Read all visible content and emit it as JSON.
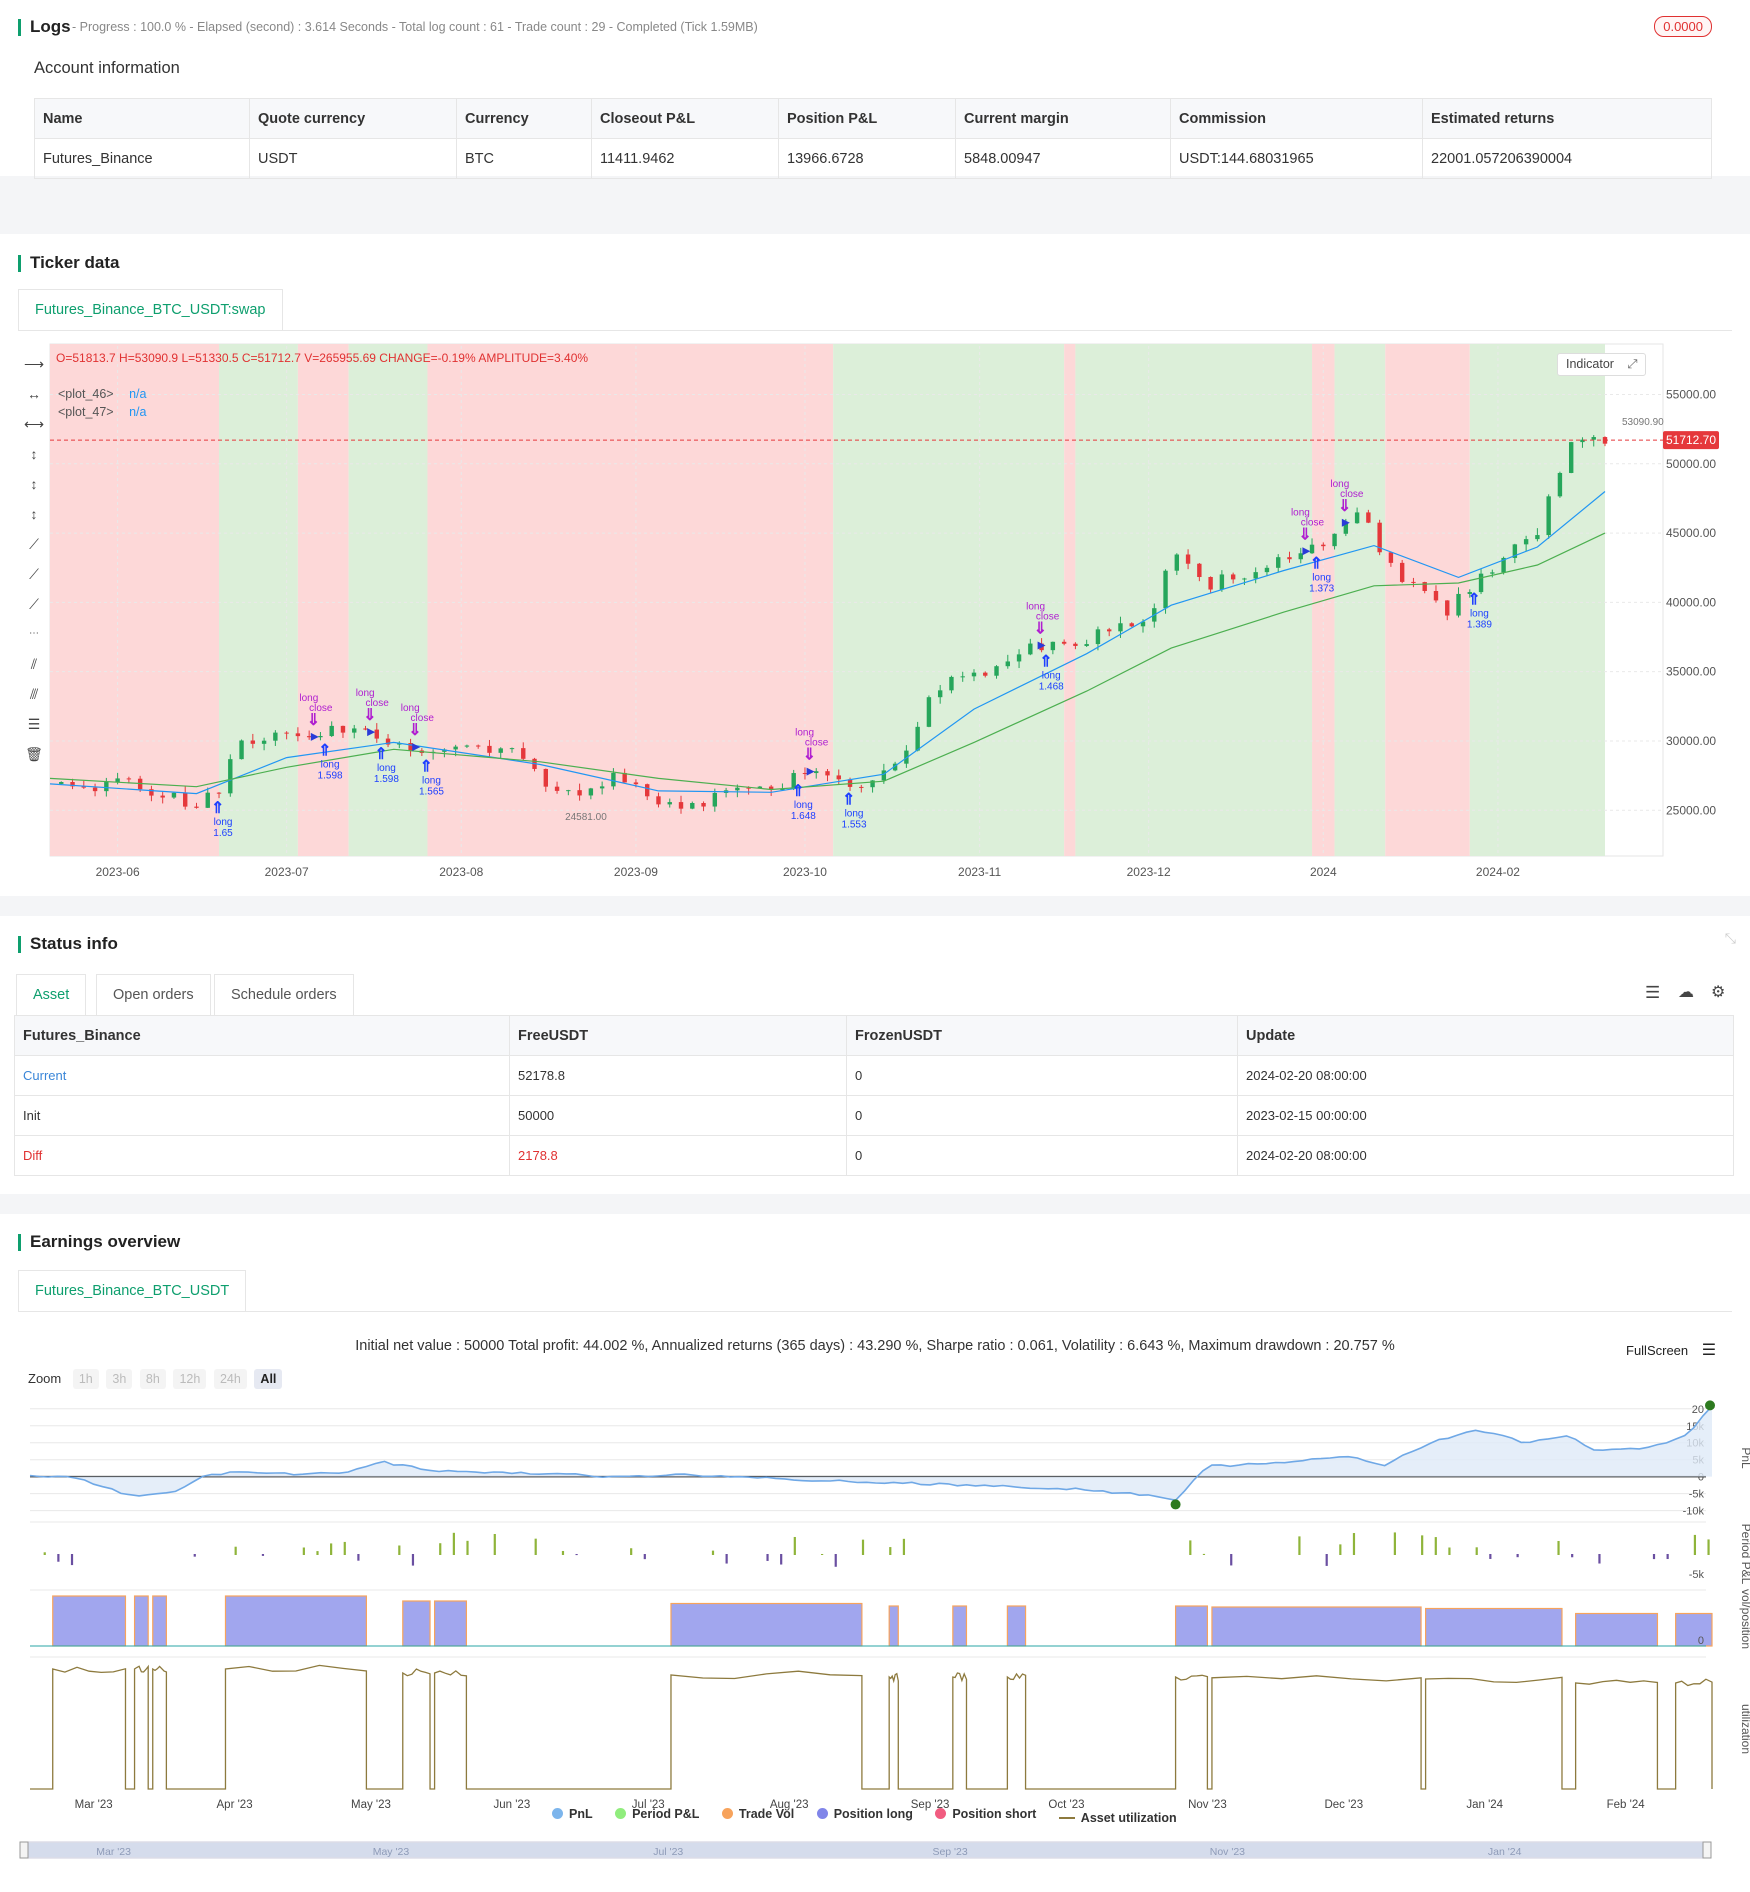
{
  "logs": {
    "title": "Logs",
    "stats": "- Progress : 100.0 % - Elapsed (second) : 3.614 Seconds - Total log count : 61 - Trade count : 29 - Completed (Tick 1.59MB)",
    "badge": "0.0000"
  },
  "account": {
    "title": "Account information",
    "headers": [
      "Name",
      "Quote currency",
      "Currency",
      "Closeout P&L",
      "Position P&L",
      "Current margin",
      "Commission",
      "Estimated returns"
    ],
    "row": [
      "Futures_Binance",
      "USDT",
      "BTC",
      "11411.9462",
      "13966.6728",
      "5848.00947",
      "USDT:144.68031965",
      "22001.057206390004"
    ]
  },
  "ticker": {
    "title": "Ticker data",
    "tab": "Futures_Binance_BTC_USDT:swap",
    "ohlc": "O=51813.7 H=53090.9 L=51330.5 C=51712.7 V=265955.69 CHANGE=-0.19% AMPLITUDE=3.40%",
    "plot46_label": "<plot_46>",
    "plot46_value": "n/a",
    "plot47_label": "<plot_47>",
    "plot47_value": "n/a",
    "indicator_button": "Indicator",
    "last_price": "51712.70",
    "high_marker": "53090.90",
    "low_marker": "24581.00"
  },
  "chart_data": [
    {
      "type": "candlestick",
      "title": "",
      "x_ticks": [
        "2023-06",
        "2023-07",
        "2023-08",
        "2023-09",
        "2023-10",
        "2023-11",
        "2023-12",
        "2024",
        "2024-02"
      ],
      "y_ticks": [
        "55000.00",
        "50000.00",
        "45000.00",
        "40000.00",
        "35000.00",
        "30000.00",
        "25000.00"
      ],
      "ylim": [
        21700,
        58500
      ],
      "close_path": [
        {
          "d": "2023-05-20",
          "v": 26900
        },
        {
          "d": "2023-05-26",
          "v": 26500
        },
        {
          "d": "2023-06-01",
          "v": 27100
        },
        {
          "d": "2023-06-08",
          "v": 26400
        },
        {
          "d": "2023-06-15",
          "v": 25300
        },
        {
          "d": "2023-06-19",
          "v": 26400
        },
        {
          "d": "2023-06-22",
          "v": 30000
        },
        {
          "d": "2023-06-30",
          "v": 30500
        },
        {
          "d": "2023-07-06",
          "v": 30300
        },
        {
          "d": "2023-07-13",
          "v": 31200
        },
        {
          "d": "2023-07-20",
          "v": 29900
        },
        {
          "d": "2023-07-27",
          "v": 29300
        },
        {
          "d": "2023-08-01",
          "v": 29500
        },
        {
          "d": "2023-08-10",
          "v": 29400
        },
        {
          "d": "2023-08-17",
          "v": 26600
        },
        {
          "d": "2023-08-25",
          "v": 26100
        },
        {
          "d": "2023-08-29",
          "v": 27700
        },
        {
          "d": "2023-09-05",
          "v": 25800
        },
        {
          "d": "2023-09-11",
          "v": 25100
        },
        {
          "d": "2023-09-18",
          "v": 26800
        },
        {
          "d": "2023-09-25",
          "v": 26200
        },
        {
          "d": "2023-10-01",
          "v": 27900
        },
        {
          "d": "2023-10-11",
          "v": 26800
        },
        {
          "d": "2023-10-20",
          "v": 29600
        },
        {
          "d": "2023-10-24",
          "v": 33900
        },
        {
          "d": "2023-10-31",
          "v": 34600
        },
        {
          "d": "2023-11-09",
          "v": 36700
        },
        {
          "d": "2023-11-20",
          "v": 37400
        },
        {
          "d": "2023-12-01",
          "v": 38700
        },
        {
          "d": "2023-12-05",
          "v": 44000
        },
        {
          "d": "2023-12-11",
          "v": 41200
        },
        {
          "d": "2023-12-25",
          "v": 43000
        },
        {
          "d": "2024-01-01",
          "v": 44200
        },
        {
          "d": "2024-01-08",
          "v": 46900
        },
        {
          "d": "2024-01-12",
          "v": 42800
        },
        {
          "d": "2024-01-23",
          "v": 39500
        },
        {
          "d": "2024-01-31",
          "v": 42600
        },
        {
          "d": "2024-02-08",
          "v": 45300
        },
        {
          "d": "2024-02-14",
          "v": 51800
        },
        {
          "d": "2024-02-20",
          "v": 51712.7
        }
      ],
      "series": [
        {
          "name": "<plot_46>",
          "color": "#2196f3",
          "values": [
            {
              "d": "2023-05-20",
              "v": 26900
            },
            {
              "d": "2023-06-15",
              "v": 26200
            },
            {
              "d": "2023-07-01",
              "v": 28800
            },
            {
              "d": "2023-07-20",
              "v": 29900
            },
            {
              "d": "2023-08-15",
              "v": 28300
            },
            {
              "d": "2023-09-05",
              "v": 26400
            },
            {
              "d": "2023-09-25",
              "v": 26300
            },
            {
              "d": "2023-10-15",
              "v": 27600
            },
            {
              "d": "2023-10-31",
              "v": 32300
            },
            {
              "d": "2023-11-20",
              "v": 36300
            },
            {
              "d": "2023-12-05",
              "v": 39800
            },
            {
              "d": "2023-12-25",
              "v": 42300
            },
            {
              "d": "2024-01-10",
              "v": 44100
            },
            {
              "d": "2024-01-25",
              "v": 41800
            },
            {
              "d": "2024-02-08",
              "v": 44000
            },
            {
              "d": "2024-02-20",
              "v": 48000
            }
          ]
        },
        {
          "name": "<plot_47>",
          "color": "#4caf50",
          "values": [
            {
              "d": "2023-05-20",
              "v": 27300
            },
            {
              "d": "2023-06-15",
              "v": 26700
            },
            {
              "d": "2023-07-01",
              "v": 28100
            },
            {
              "d": "2023-07-20",
              "v": 29400
            },
            {
              "d": "2023-08-15",
              "v": 28500
            },
            {
              "d": "2023-09-05",
              "v": 27300
            },
            {
              "d": "2023-09-25",
              "v": 26500
            },
            {
              "d": "2023-10-15",
              "v": 27100
            },
            {
              "d": "2023-10-31",
              "v": 29900
            },
            {
              "d": "2023-11-20",
              "v": 33600
            },
            {
              "d": "2023-12-05",
              "v": 36700
            },
            {
              "d": "2023-12-25",
              "v": 39300
            },
            {
              "d": "2024-01-10",
              "v": 41200
            },
            {
              "d": "2024-01-25",
              "v": 41400
            },
            {
              "d": "2024-02-08",
              "v": 42700
            },
            {
              "d": "2024-02-20",
              "v": 45000
            }
          ]
        }
      ],
      "regimes": [
        {
          "from": "2023-05-20",
          "to": "2023-06-19",
          "state": "bear"
        },
        {
          "from": "2023-06-19",
          "to": "2023-07-03",
          "state": "bull"
        },
        {
          "from": "2023-07-03",
          "to": "2023-07-12",
          "state": "bear"
        },
        {
          "from": "2023-07-12",
          "to": "2023-07-26",
          "state": "bull"
        },
        {
          "from": "2023-07-26",
          "to": "2023-10-06",
          "state": "bear"
        },
        {
          "from": "2023-10-06",
          "to": "2023-11-16",
          "state": "bull"
        },
        {
          "from": "2023-11-16",
          "to": "2023-11-18",
          "state": "bear"
        },
        {
          "from": "2023-11-18",
          "to": "2023-12-30",
          "state": "bull"
        },
        {
          "from": "2023-12-30",
          "to": "2024-01-03",
          "state": "bear"
        },
        {
          "from": "2024-01-03",
          "to": "2024-01-12",
          "state": "bull"
        },
        {
          "from": "2024-01-12",
          "to": "2024-01-27",
          "state": "bear"
        },
        {
          "from": "2024-01-27",
          "to": "2024-02-20",
          "state": "bull"
        }
      ],
      "signals": [
        {
          "d": "2023-06-19",
          "kind": "entry",
          "label": "long",
          "qty": "1.65"
        },
        {
          "d": "2023-07-06",
          "kind": "exit",
          "label": "long",
          "extra": "close"
        },
        {
          "d": "2023-07-08",
          "kind": "entry",
          "label": "long",
          "qty": "1.598"
        },
        {
          "d": "2023-07-16",
          "kind": "exit",
          "label": "long",
          "extra": "close"
        },
        {
          "d": "2023-07-18",
          "kind": "entry",
          "label": "long",
          "qty": "1.598"
        },
        {
          "d": "2023-07-24",
          "kind": "exit",
          "label": "long",
          "extra": "close"
        },
        {
          "d": "2023-07-26",
          "kind": "entry",
          "label": "long",
          "qty": "1.565"
        },
        {
          "d": "2023-10-02",
          "kind": "exit",
          "label": "long",
          "extra": "close"
        },
        {
          "d": "2023-09-30",
          "kind": "entry",
          "label": "long",
          "qty": "1.648"
        },
        {
          "d": "2023-10-09",
          "kind": "entry",
          "label": "long",
          "qty": "1.553"
        },
        {
          "d": "2023-11-12",
          "kind": "exit",
          "label": "long",
          "extra": "close"
        },
        {
          "d": "2023-11-13",
          "kind": "entry",
          "label": "long",
          "qty": "1.468"
        },
        {
          "d": "2023-12-29",
          "kind": "exit",
          "label": "long",
          "extra": "close"
        },
        {
          "d": "2023-12-31",
          "kind": "entry",
          "label": "long",
          "qty": "1.373"
        },
        {
          "d": "2024-01-05",
          "kind": "exit",
          "label": "long",
          "extra": "close"
        },
        {
          "d": "2024-01-28",
          "kind": "entry",
          "label": "long",
          "qty": "1.389"
        }
      ]
    },
    {
      "type": "line",
      "title": "",
      "ylabel": "PnL",
      "y_ticks": [
        "20",
        "15k",
        "10k",
        "5k",
        "0",
        "-5k",
        "-10k"
      ],
      "ylim": [
        -11000,
        22000
      ],
      "x_ticks": [
        "Mar '23",
        "Apr '23",
        "May '23",
        "Jun '23",
        "Jul '23",
        "Aug '23",
        "Sep '23",
        "Oct '23",
        "Nov '23",
        "Dec '23",
        "Jan '24",
        "Feb '24"
      ],
      "values": [
        {
          "d": "2023-02-15",
          "v": 0
        },
        {
          "d": "2023-02-25",
          "v": -200
        },
        {
          "d": "2023-03-10",
          "v": -6000
        },
        {
          "d": "2023-03-20",
          "v": -4000
        },
        {
          "d": "2023-03-25",
          "v": 200
        },
        {
          "d": "2023-04-01",
          "v": 1500
        },
        {
          "d": "2023-04-10",
          "v": 800
        },
        {
          "d": "2023-04-25",
          "v": 1000
        },
        {
          "d": "2023-05-03",
          "v": 4500
        },
        {
          "d": "2023-05-15",
          "v": 1500
        },
        {
          "d": "2023-06-10",
          "v": 1000
        },
        {
          "d": "2023-06-20",
          "v": 0
        },
        {
          "d": "2023-07-10",
          "v": 500
        },
        {
          "d": "2023-08-15",
          "v": -1500
        },
        {
          "d": "2023-09-10",
          "v": -2500
        },
        {
          "d": "2023-10-01",
          "v": -3500
        },
        {
          "d": "2023-10-20",
          "v": -5500
        },
        {
          "d": "2023-10-25",
          "v": -7000
        },
        {
          "d": "2023-11-01",
          "v": 3000
        },
        {
          "d": "2023-11-15",
          "v": 4000
        },
        {
          "d": "2023-12-01",
          "v": 6000
        },
        {
          "d": "2023-12-10",
          "v": 3500
        },
        {
          "d": "2023-12-20",
          "v": 10000
        },
        {
          "d": "2023-12-30",
          "v": 14000
        },
        {
          "d": "2024-01-10",
          "v": 10000
        },
        {
          "d": "2024-01-20",
          "v": 12000
        },
        {
          "d": "2024-01-25",
          "v": 8000
        },
        {
          "d": "2024-02-05",
          "v": 8500
        },
        {
          "d": "2024-02-10",
          "v": 10000
        },
        {
          "d": "2024-02-15",
          "v": 13000
        },
        {
          "d": "2024-02-20",
          "v": 21000
        }
      ]
    },
    {
      "type": "bar",
      "title": "",
      "ylabel": "Period P&L",
      "y_ticks": [
        "-5k"
      ]
    },
    {
      "type": "area",
      "title": "",
      "ylabel": "vol/position",
      "y_ticks": [
        "0"
      ]
    },
    {
      "type": "line",
      "title": "",
      "ylabel": "utilization"
    }
  ],
  "status": {
    "title": "Status info",
    "tabs": [
      "Asset",
      "Open orders",
      "Schedule orders"
    ],
    "headers": [
      "Futures_Binance",
      "FreeUSDT",
      "FrozenUSDT",
      "Update"
    ],
    "rows": [
      {
        "name": "Current",
        "free": "52178.8",
        "frozen": "0",
        "update": "2024-02-20 08:00:00"
      },
      {
        "name": "Init",
        "free": "50000",
        "frozen": "0",
        "update": "2023-02-15 00:00:00"
      },
      {
        "name": "Diff",
        "free": "2178.8",
        "frozen": "0",
        "update": "2024-02-20 08:00:00"
      }
    ],
    "colors": {
      "current": "#3a86d8",
      "diff": "#e03131"
    }
  },
  "earnings": {
    "title": "Earnings overview",
    "tab": "Futures_Binance_BTC_USDT",
    "summary": "Initial net value : 50000 Total profit: 44.002 %, Annualized returns (365 days) : 43.290 %, Sharpe ratio : 0.061, Volatility : 6.643 %, Maximum drawdown : 20.757 %",
    "fullscreen": "FullScreen",
    "zoom_label": "Zoom",
    "zoom_options": [
      "1h",
      "3h",
      "8h",
      "12h",
      "24h",
      "All"
    ],
    "legend": [
      {
        "label": "PnL",
        "color": "#7cb5ec"
      },
      {
        "label": "Period P&L",
        "color": "#90ed7d"
      },
      {
        "label": "Trade Vol",
        "color": "#f7a35c"
      },
      {
        "label": "Position long",
        "color": "#8085e9"
      },
      {
        "label": "Position short",
        "color": "#f15c80"
      },
      {
        "label": "Asset utilization",
        "color": "#8d7a3e"
      }
    ],
    "navigator_ticks": [
      "Mar '23",
      "May '23",
      "Jul '23",
      "Sep '23",
      "Nov '23",
      "Jan '24"
    ]
  }
}
